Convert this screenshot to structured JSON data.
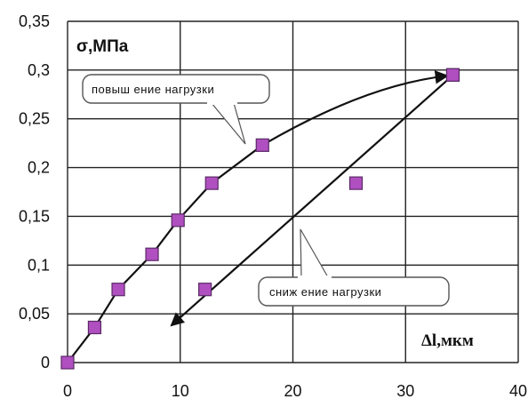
{
  "chart_data": {
    "type": "scatter",
    "xlabel": "Δl,мкм",
    "ylabel": "σ,МПа",
    "xlim": [
      0,
      40
    ],
    "ylim": [
      0,
      0.35
    ],
    "x_ticks": [
      "0",
      "10",
      "20",
      "30",
      "40"
    ],
    "y_ticks": [
      "0",
      "0,05",
      "0,1",
      "0,15",
      "0,2",
      "0,25",
      "0,3",
      "0,35"
    ],
    "grid": true,
    "marker_color": "#b04fc0",
    "series": [
      {
        "points": [
          {
            "x": 0,
            "y": 0
          },
          {
            "x": 2.4,
            "y": 0.036
          },
          {
            "x": 4.5,
            "y": 0.075
          },
          {
            "x": 7.5,
            "y": 0.111
          },
          {
            "x": 9.8,
            "y": 0.146
          },
          {
            "x": 12.8,
            "y": 0.184
          },
          {
            "x": 17.3,
            "y": 0.223
          },
          {
            "x": 34.2,
            "y": 0.295
          }
        ]
      },
      {
        "points": [
          {
            "x": 34.2,
            "y": 0.295
          },
          {
            "x": 25.6,
            "y": 0.184
          },
          {
            "x": 12.2,
            "y": 0.075
          }
        ]
      }
    ],
    "annotations": [
      {
        "text": "повыш ение нагрузки"
      },
      {
        "text": "сниж ение нагрузки"
      }
    ]
  }
}
